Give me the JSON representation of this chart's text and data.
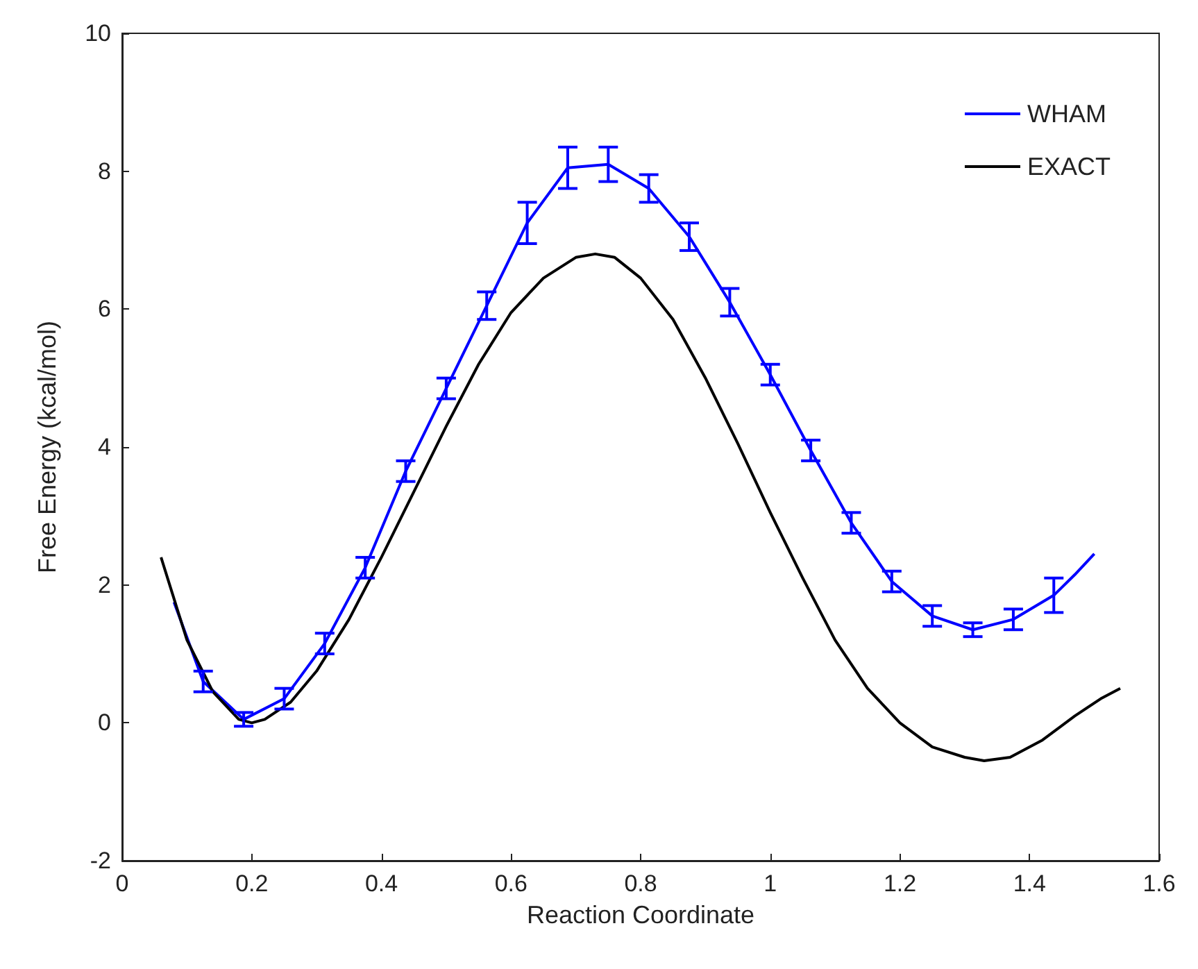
{
  "chart_data": {
    "type": "line",
    "xlabel": "Reaction Coordinate",
    "ylabel": "Free Energy (kcal/mol)",
    "xlim": [
      0,
      1.6
    ],
    "xticks": [
      0,
      0.2,
      0.4,
      0.6,
      0.8,
      1,
      1.2,
      1.4,
      1.6
    ],
    "ylim": [
      -2,
      10
    ],
    "yticks": [
      -2,
      0,
      2,
      4,
      6,
      8,
      10
    ],
    "grid": false,
    "legend": "top right",
    "marker": "none",
    "line_style": "solid",
    "series": [
      {
        "name": "WHAM",
        "color": "#0000ff",
        "x": [
          0.08,
          0.125,
          0.1875,
          0.25,
          0.3125,
          0.375,
          0.4375,
          0.5,
          0.5625,
          0.625,
          0.6875,
          0.75,
          0.8125,
          0.875,
          0.9375,
          1.0,
          1.0625,
          1.125,
          1.1875,
          1.25,
          1.3125,
          1.375,
          1.4375,
          1.47,
          1.5
        ],
        "values": [
          1.75,
          0.6,
          0.05,
          0.35,
          1.15,
          2.25,
          3.65,
          4.85,
          6.05,
          7.25,
          8.05,
          8.1,
          7.75,
          7.05,
          6.1,
          5.05,
          3.95,
          2.9,
          2.05,
          1.55,
          1.35,
          1.5,
          1.85,
          2.15,
          2.45
        ],
        "errors": [
          null,
          0.15,
          0.1,
          0.15,
          0.15,
          0.15,
          0.15,
          0.15,
          0.2,
          0.3,
          0.3,
          0.25,
          0.2,
          0.2,
          0.2,
          0.15,
          0.15,
          0.15,
          0.15,
          0.15,
          0.1,
          0.15,
          0.25,
          null,
          null
        ]
      },
      {
        "name": "EXACT",
        "color": "#000000",
        "x": [
          0.06,
          0.1,
          0.14,
          0.18,
          0.2,
          0.22,
          0.26,
          0.3,
          0.35,
          0.4,
          0.45,
          0.5,
          0.55,
          0.6,
          0.65,
          0.7,
          0.73,
          0.76,
          0.8,
          0.85,
          0.9,
          0.95,
          1.0,
          1.05,
          1.1,
          1.15,
          1.2,
          1.25,
          1.3,
          1.33,
          1.37,
          1.42,
          1.47,
          1.51,
          1.54
        ],
        "values": [
          2.4,
          1.2,
          0.45,
          0.05,
          0.0,
          0.05,
          0.3,
          0.75,
          1.5,
          2.4,
          3.35,
          4.3,
          5.2,
          5.95,
          6.45,
          6.75,
          6.8,
          6.75,
          6.45,
          5.85,
          5.0,
          4.05,
          3.05,
          2.1,
          1.2,
          0.5,
          0.0,
          -0.35,
          -0.5,
          -0.55,
          -0.5,
          -0.25,
          0.1,
          0.35,
          0.5
        ]
      }
    ]
  }
}
